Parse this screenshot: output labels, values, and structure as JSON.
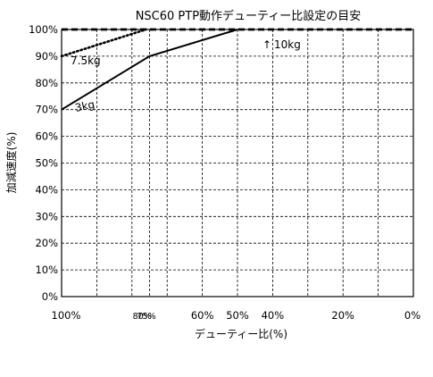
{
  "chart_data": {
    "type": "line",
    "title": "NSC60 PTP動作デューティー比設定の目安",
    "xlabel": "デューティー比(%)",
    "ylabel": "加減速度(%)",
    "xlim": [
      100,
      0
    ],
    "ylim": [
      0,
      100
    ],
    "x_gridlines": [
      90,
      80,
      75,
      70,
      60,
      50,
      40,
      30,
      20,
      10,
      0
    ],
    "y_ticks": [
      0,
      10,
      20,
      30,
      40,
      50,
      60,
      70,
      80,
      90,
      100
    ],
    "y_tick_labels": [
      "0%",
      "10%",
      "20%",
      "30%",
      "40%",
      "50%",
      "60%",
      "70%",
      "80%",
      "90%",
      "100%"
    ],
    "x_tick_labels": [
      {
        "value": 100,
        "text": "100%"
      },
      {
        "value": 80,
        "text": "80%"
      },
      {
        "value": 75,
        "text": "75%"
      },
      {
        "value": 60,
        "text": "60%"
      },
      {
        "value": 50,
        "text": "50%"
      },
      {
        "value": 40,
        "text": "40%"
      },
      {
        "value": 20,
        "text": "20%"
      },
      {
        "value": 0,
        "text": "0%"
      }
    ],
    "grid": true,
    "series": [
      {
        "name": "3kg",
        "style": "solid",
        "color": "#000000",
        "x": [
          100,
          75,
          50
        ],
        "y": [
          70,
          90,
          100
        ]
      },
      {
        "name": "7.5kg",
        "style": "dotted",
        "color": "#000000",
        "x": [
          100,
          76
        ],
        "y": [
          90,
          100
        ]
      },
      {
        "name": "10kg",
        "style": "dashed",
        "color": "#000000",
        "x": [
          100,
          0
        ],
        "y": [
          100,
          100
        ]
      }
    ],
    "annotations": {
      "label_3kg": "3kg",
      "label_7_5kg": "7.5kg",
      "label_10kg": "10kg",
      "arrow_10kg": "↑"
    }
  }
}
